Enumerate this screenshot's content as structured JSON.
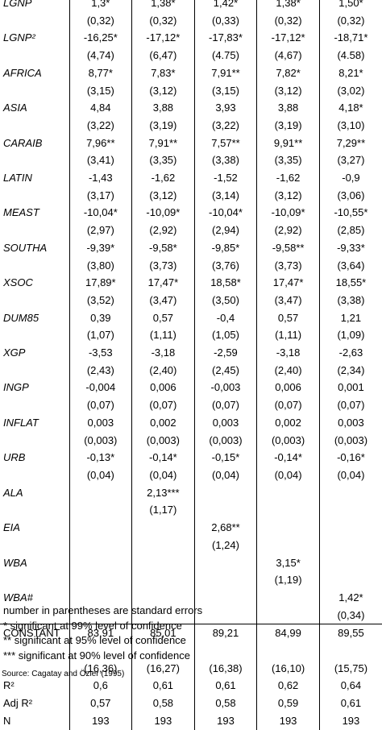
{
  "table": {
    "rows": [
      {
        "label": "LGNP",
        "italic": true,
        "values": [
          "1,3*",
          "1,38*",
          "1,42*",
          "1,38*",
          "1,50*"
        ]
      },
      {
        "label": "",
        "italic": false,
        "values": [
          "(0,32)",
          "(0,32)",
          "(0,33)",
          "(0,32)",
          "(0,32)"
        ]
      },
      {
        "label": "LGNP²",
        "italic": true,
        "values": [
          "-16,25*",
          "-17,12*",
          "-17,83*",
          "-17,12*",
          "-18,71*"
        ]
      },
      {
        "label": "",
        "italic": false,
        "values": [
          "(4,74)",
          "(6,47)",
          "(4.75)",
          "(4,67)",
          "(4.58)"
        ]
      },
      {
        "label": "AFRICA",
        "italic": true,
        "values": [
          "8,77*",
          "7,83*",
          "7,91**",
          "7,82*",
          "8,21*"
        ]
      },
      {
        "label": "",
        "italic": false,
        "values": [
          "(3,15)",
          "(3,12)",
          "(3,15)",
          "(3,12)",
          "(3,02)"
        ]
      },
      {
        "label": "ASIA",
        "italic": true,
        "values": [
          "4,84",
          "3,88",
          "3,93",
          "3,88",
          "4,18*"
        ]
      },
      {
        "label": "",
        "italic": false,
        "values": [
          "(3,22)",
          "(3,19)",
          "(3,22)",
          "(3,19)",
          "(3,10)"
        ]
      },
      {
        "label": "CARAIB",
        "italic": true,
        "values": [
          "7,96**",
          "7,91**",
          "7,57**",
          "9,91**",
          "7,29**"
        ]
      },
      {
        "label": "",
        "italic": false,
        "values": [
          "(3,41)",
          "(3,35)",
          "(3,38)",
          "(3,35)",
          "(3,27)"
        ]
      },
      {
        "label": "LATIN",
        "italic": true,
        "values": [
          "-1,43",
          "-1,62",
          "-1,52",
          "-1,62",
          "-0,9"
        ]
      },
      {
        "label": "",
        "italic": false,
        "values": [
          "(3,17)",
          "(3,12)",
          "(3,14)",
          "(3,12)",
          "(3,06)"
        ]
      },
      {
        "label": "MEAST",
        "italic": true,
        "values": [
          "-10,04*",
          "-10,09*",
          "-10,04*",
          "-10,09*",
          "-10,55*"
        ]
      },
      {
        "label": "",
        "italic": false,
        "values": [
          "(2,97)",
          "(2,92)",
          "(2,94)",
          "(2,92)",
          "(2,85)"
        ]
      },
      {
        "label": "SOUTHA",
        "italic": true,
        "values": [
          "-9,39*",
          "-9,58*",
          "-9,85*",
          "-9,58**",
          "-9,33*"
        ]
      },
      {
        "label": "",
        "italic": false,
        "values": [
          "(3,80)",
          "(3,73)",
          "(3,76)",
          "(3,73)",
          "(3,64)"
        ]
      },
      {
        "label": "XSOC",
        "italic": true,
        "values": [
          "17,89*",
          "17,47*",
          "18,58*",
          "17,47*",
          "18,55*"
        ]
      },
      {
        "label": "",
        "italic": false,
        "values": [
          "(3,52)",
          "(3,47)",
          "(3,50)",
          "(3,47)",
          "(3,38)"
        ]
      },
      {
        "label": "DUM85",
        "italic": true,
        "values": [
          "0,39",
          "0,57",
          "-0,4",
          "0,57",
          "1,21"
        ]
      },
      {
        "label": "",
        "italic": false,
        "values": [
          "(1,07)",
          "(1,11)",
          "(1,05)",
          "(1,11)",
          "(1,09)"
        ]
      },
      {
        "label": "XGP",
        "italic": true,
        "values": [
          "-3,53",
          "-3,18",
          "-2,59",
          "-3,18",
          "-2,63"
        ]
      },
      {
        "label": "",
        "italic": false,
        "values": [
          "(2,43)",
          "(2,40)",
          "(2,45)",
          "(2,40)",
          "(2,34)"
        ]
      },
      {
        "label": "INGP",
        "italic": true,
        "values": [
          "-0,004",
          "0,006",
          "-0,003",
          "0,006",
          "0,001"
        ]
      },
      {
        "label": "",
        "italic": false,
        "values": [
          "(0,07)",
          "(0,07)",
          "(0,07)",
          "(0,07)",
          "(0,07)"
        ]
      },
      {
        "label": "INFLAT",
        "italic": true,
        "values": [
          "0,003",
          "0,002",
          "0,003",
          "0,002",
          "0,003"
        ]
      },
      {
        "label": "",
        "italic": false,
        "values": [
          "(0,003)",
          "(0,003)",
          "(0,003)",
          "(0,003)",
          "(0,003)"
        ]
      },
      {
        "label": "URB",
        "italic": true,
        "values": [
          "-0,13*",
          "-0,14*",
          "-0,15*",
          "-0,14*",
          "-0,16*"
        ]
      },
      {
        "label": "",
        "italic": false,
        "values": [
          "(0,04)",
          "(0,04)",
          "(0,04)",
          "(0,04)",
          "(0,04)"
        ]
      },
      {
        "label": "ALA",
        "italic": true,
        "values": [
          "",
          "2,13***",
          "",
          "",
          ""
        ]
      },
      {
        "label": "",
        "italic": false,
        "values": [
          "",
          "(1,17)",
          "",
          "",
          ""
        ]
      },
      {
        "label": "EIA",
        "italic": true,
        "values": [
          "",
          "",
          "2,68**",
          "",
          ""
        ]
      },
      {
        "label": "",
        "italic": false,
        "values": [
          "",
          "",
          "(1,24)",
          "",
          ""
        ]
      },
      {
        "label": "WBA",
        "italic": true,
        "values": [
          "",
          "",
          "",
          "3,15*",
          ""
        ]
      },
      {
        "label": "",
        "italic": false,
        "values": [
          "",
          "",
          "",
          "(1,19)",
          ""
        ]
      },
      {
        "label": "WBA#",
        "italic": true,
        "values": [
          "",
          "",
          "",
          "",
          "1,42*"
        ]
      },
      {
        "label": "",
        "italic": false,
        "values": [
          "",
          "",
          "",
          "",
          "(0,34)"
        ]
      },
      {
        "label": "CONSTANT",
        "italic": false,
        "rule": true,
        "values": [
          "83,91",
          "85,01",
          "89,21",
          "84,99",
          "89,55"
        ]
      },
      {
        "label": "",
        "italic": false,
        "values": [
          "",
          "",
          "",
          "",
          ""
        ]
      },
      {
        "label": "",
        "italic": false,
        "values": [
          "(16,36)",
          "(16,27)",
          "(16,38)",
          "(16,10)",
          "(15,75)"
        ]
      },
      {
        "label": "R²",
        "italic": false,
        "values": [
          "0,6",
          "0,61",
          "0,61",
          "0,62",
          "0,64"
        ]
      },
      {
        "label": "Adj R²",
        "italic": false,
        "values": [
          "0,57",
          "0,58",
          "0,58",
          "0,59",
          "0,61"
        ]
      },
      {
        "label": "N",
        "italic": false,
        "values": [
          "193",
          "193",
          "193",
          "193",
          "193"
        ]
      }
    ]
  },
  "notes": [
    "number in parentheses are standard errors",
    "* significant at 99% level of confidence",
    "** significant at 95% level of confidence",
    "*** significant at 90% level of confidence"
  ],
  "source": "Source: Cagatay and Özler (1995)"
}
